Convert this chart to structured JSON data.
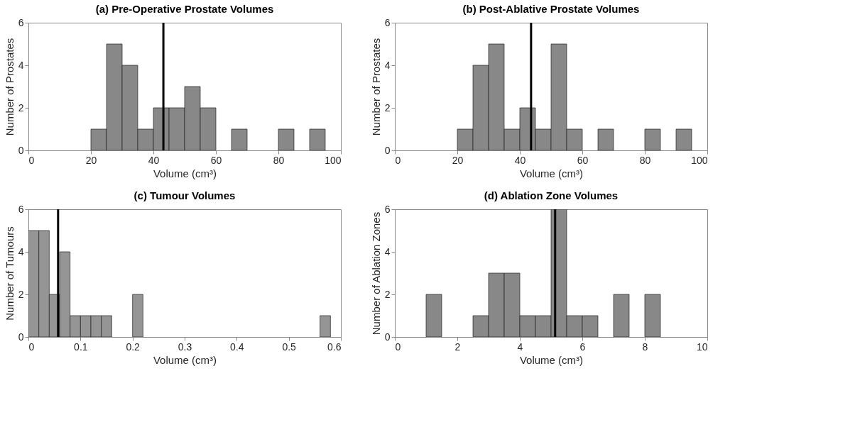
{
  "chart_data": [
    {
      "type": "histogram",
      "title": "(a) Pre-Operative Prostate Volumes",
      "xlabel": "Volume (cm³)",
      "ylabel": "Number of Prostates",
      "color": "#888888",
      "bins": [
        20,
        25,
        30,
        35,
        40,
        45,
        50,
        55,
        60,
        65,
        70,
        75,
        80,
        85,
        90,
        95
      ],
      "values": [
        1,
        5,
        4,
        1,
        2,
        2,
        3,
        2,
        0,
        1,
        0,
        0,
        1,
        0,
        1
      ],
      "xlim": [
        0,
        100
      ],
      "xticks": [
        0,
        20,
        40,
        60,
        80,
        100
      ],
      "ylim": [
        0,
        6
      ],
      "yticks": [
        0,
        2,
        4,
        6
      ],
      "grid": false,
      "ref_lines": [
        {
          "axis": "x",
          "value": 43.2,
          "color": "#000000"
        }
      ]
    },
    {
      "type": "histogram",
      "title": "(b) Post-Ablative Prostate Volumes",
      "xlabel": "Volume (cm³)",
      "ylabel": "Number of Prostates",
      "color": "#888888",
      "bins": [
        20,
        25,
        30,
        35,
        40,
        45,
        50,
        55,
        60,
        65,
        70,
        75,
        80,
        85,
        90,
        95
      ],
      "values": [
        1,
        4,
        5,
        1,
        2,
        1,
        5,
        1,
        0,
        1,
        0,
        0,
        1,
        0,
        1
      ],
      "xlim": [
        0,
        100
      ],
      "xticks": [
        0,
        20,
        40,
        60,
        80,
        100
      ],
      "ylim": [
        0,
        6
      ],
      "yticks": [
        0,
        2,
        4,
        6
      ],
      "grid": false,
      "ref_lines": [
        {
          "axis": "x",
          "value": 43.6,
          "color": "#000000"
        }
      ]
    },
    {
      "type": "histogram",
      "title": "(c) Tumour Volumes",
      "xlabel": "Volume (cm³)",
      "ylabel": "Number of Tumours",
      "color": "#959595",
      "bins": [
        0,
        0.02,
        0.04,
        0.06,
        0.08,
        0.1,
        0.12,
        0.14,
        0.16,
        0.18,
        0.2,
        0.22,
        0.24,
        0.26,
        0.28,
        0.3,
        0.32,
        0.34,
        0.36,
        0.38,
        0.4,
        0.42,
        0.44,
        0.46,
        0.48,
        0.5,
        0.52,
        0.54,
        0.56,
        0.58
      ],
      "values": [
        5,
        5,
        2,
        4,
        1,
        1,
        1,
        1,
        0,
        0,
        2,
        0,
        0,
        0,
        0,
        0,
        0,
        0,
        0,
        0,
        0,
        0,
        0,
        0,
        0,
        0,
        0,
        0,
        1
      ],
      "xlim": [
        0,
        0.6
      ],
      "xticks": [
        0,
        0.1,
        0.2,
        0.3,
        0.4,
        0.5,
        0.6
      ],
      "ylim": [
        0,
        6
      ],
      "yticks": [
        0,
        2,
        4,
        6
      ],
      "grid": false,
      "ref_lines": [
        {
          "axis": "x",
          "value": 0.057,
          "color": "#000000"
        }
      ]
    },
    {
      "type": "histogram",
      "title": "(d) Ablation Zone Volumes",
      "xlabel": "Volume (cm³)",
      "ylabel": "Number of Ablation Zones",
      "color": "#888888",
      "bins": [
        1,
        1.5,
        2,
        2.5,
        3,
        3.5,
        4,
        4.5,
        5,
        5.5,
        6,
        6.5,
        7,
        7.5,
        8,
        8.5
      ],
      "values": [
        2,
        0,
        0,
        1,
        3,
        3,
        1,
        1,
        6,
        1,
        1,
        0,
        2,
        0,
        2
      ],
      "xlim": [
        0,
        10
      ],
      "xticks": [
        0,
        2,
        4,
        6,
        8,
        10
      ],
      "ylim": [
        0,
        6
      ],
      "yticks": [
        0,
        2,
        4,
        6
      ],
      "grid": false,
      "ref_lines": [
        {
          "axis": "x",
          "value": 5.13,
          "color": "#000000"
        }
      ]
    }
  ]
}
